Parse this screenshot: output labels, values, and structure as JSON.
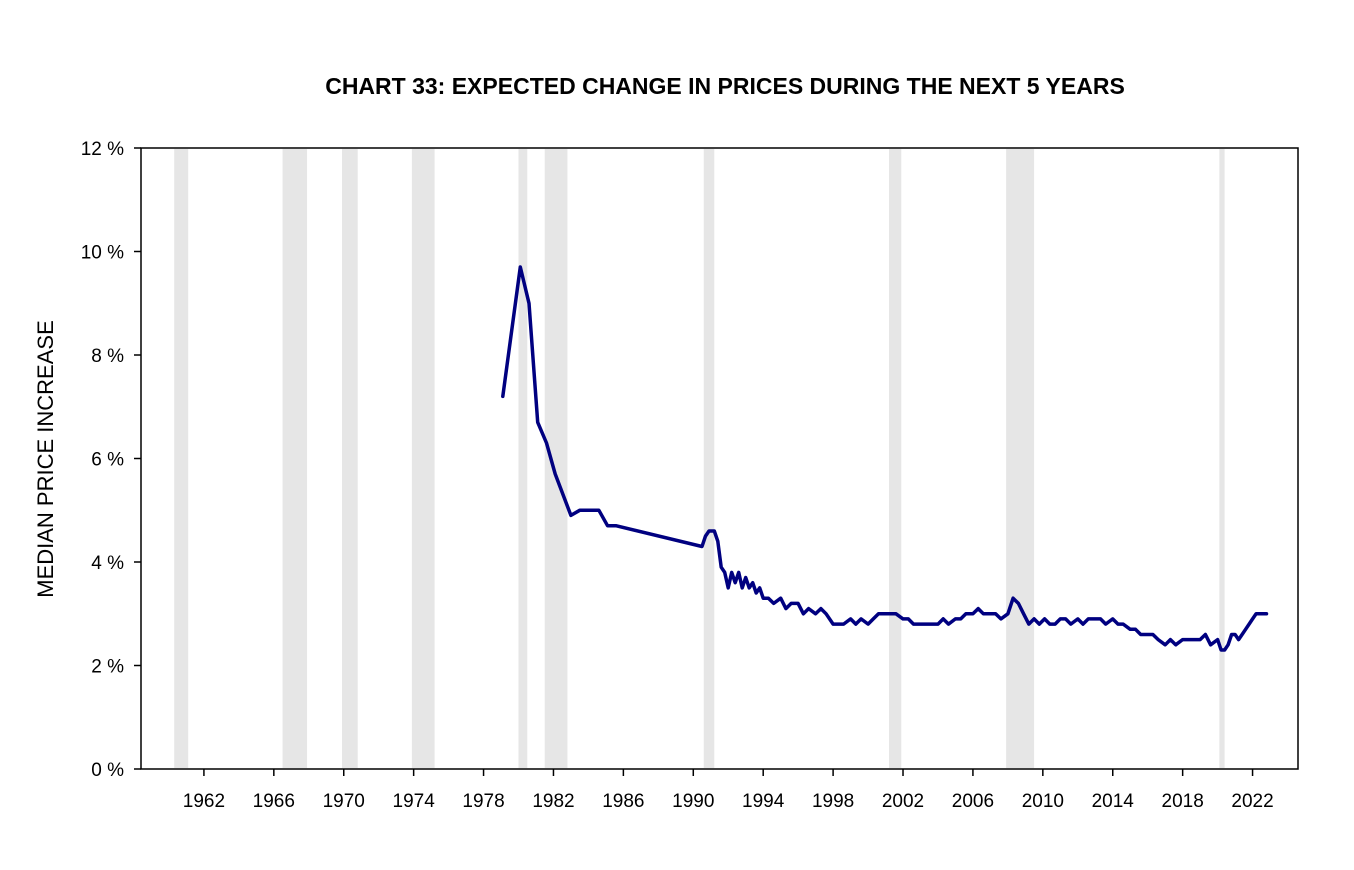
{
  "chart_data": {
    "type": "line",
    "title": "CHART 33: EXPECTED CHANGE IN PRICES DURING THE NEXT 5 YEARS",
    "xlabel": "",
    "ylabel": "MEDIAN PRICE INCREASE",
    "xlim": [
      1958.4,
      2024.6
    ],
    "ylim": [
      0,
      12
    ],
    "x_ticks": [
      1962,
      1966,
      1970,
      1974,
      1978,
      1982,
      1986,
      1990,
      1994,
      1998,
      2002,
      2006,
      2010,
      2014,
      2018,
      2022
    ],
    "x_tick_labels": [
      "1962",
      "1966",
      "1970",
      "1974",
      "1978",
      "1982",
      "1986",
      "1990",
      "1994",
      "1998",
      "2002",
      "2006",
      "2010",
      "2014",
      "2018",
      "2022"
    ],
    "y_ticks": [
      0,
      2,
      4,
      6,
      8,
      10,
      12
    ],
    "y_tick_labels": [
      "0 %",
      "2 %",
      "4 %",
      "6 %",
      "8 %",
      "10 %",
      "12 %"
    ],
    "grid": false,
    "legend": "none",
    "recessions": [
      [
        1960.3,
        1961.1
      ],
      [
        1966.5,
        1967.9
      ],
      [
        1969.9,
        1970.8
      ],
      [
        1973.9,
        1975.2
      ],
      [
        1980.0,
        1980.5
      ],
      [
        1981.5,
        1982.8
      ],
      [
        1990.6,
        1991.2
      ],
      [
        2001.2,
        2001.9
      ],
      [
        2007.9,
        2009.5
      ],
      [
        2020.1,
        2020.4
      ]
    ],
    "series": [
      {
        "color": "#000080",
        "x": [
          1979.1,
          1980.1,
          1980.6,
          1981.1,
          1981.6,
          1982.1,
          1983.0,
          1983.5,
          1984.0,
          1984.6,
          1985.1,
          1985.6,
          1990.5,
          1990.7,
          1990.9,
          1991.2,
          1991.4,
          1991.6,
          1991.8,
          1992.0,
          1992.2,
          1992.4,
          1992.6,
          1992.8,
          1993.0,
          1993.2,
          1993.4,
          1993.6,
          1993.8,
          1994.0,
          1994.3,
          1994.6,
          1995.0,
          1995.3,
          1995.6,
          1996.0,
          1996.3,
          1996.6,
          1997.0,
          1997.3,
          1997.6,
          1998.0,
          1998.3,
          1998.6,
          1999.0,
          1999.3,
          1999.6,
          2000.0,
          2000.3,
          2000.6,
          2001.0,
          2001.3,
          2001.6,
          2002.0,
          2002.3,
          2002.6,
          2003.0,
          2003.3,
          2003.6,
          2004.0,
          2004.3,
          2004.6,
          2005.0,
          2005.3,
          2005.6,
          2006.0,
          2006.3,
          2006.6,
          2007.0,
          2007.3,
          2007.6,
          2008.0,
          2008.3,
          2008.6,
          2008.9,
          2009.2,
          2009.5,
          2009.8,
          2010.1,
          2010.4,
          2010.7,
          2011.0,
          2011.3,
          2011.6,
          2012.0,
          2012.3,
          2012.6,
          2013.0,
          2013.3,
          2013.6,
          2014.0,
          2014.3,
          2014.6,
          2015.0,
          2015.3,
          2015.6,
          2016.0,
          2016.3,
          2016.6,
          2017.0,
          2017.3,
          2017.6,
          2018.0,
          2018.3,
          2018.6,
          2019.0,
          2019.3,
          2019.6,
          2020.0,
          2020.2,
          2020.4,
          2020.6,
          2020.8,
          2021.0,
          2021.2,
          2021.4,
          2021.6,
          2021.8,
          2022.0,
          2022.2,
          2022.4,
          2022.6,
          2022.8
        ],
        "y": [
          7.2,
          9.7,
          9.0,
          6.7,
          6.3,
          5.7,
          4.9,
          5.0,
          5.0,
          5.0,
          4.7,
          4.7,
          4.3,
          4.5,
          4.6,
          4.6,
          4.4,
          3.9,
          3.8,
          3.5,
          3.8,
          3.6,
          3.8,
          3.5,
          3.7,
          3.5,
          3.6,
          3.4,
          3.5,
          3.3,
          3.3,
          3.2,
          3.3,
          3.1,
          3.2,
          3.2,
          3.0,
          3.1,
          3.0,
          3.1,
          3.0,
          2.8,
          2.8,
          2.8,
          2.9,
          2.8,
          2.9,
          2.8,
          2.9,
          3.0,
          3.0,
          3.0,
          3.0,
          2.9,
          2.9,
          2.8,
          2.8,
          2.8,
          2.8,
          2.8,
          2.9,
          2.8,
          2.9,
          2.9,
          3.0,
          3.0,
          3.1,
          3.0,
          3.0,
          3.0,
          2.9,
          3.0,
          3.3,
          3.2,
          3.0,
          2.8,
          2.9,
          2.8,
          2.9,
          2.8,
          2.8,
          2.9,
          2.9,
          2.8,
          2.9,
          2.8,
          2.9,
          2.9,
          2.9,
          2.8,
          2.9,
          2.8,
          2.8,
          2.7,
          2.7,
          2.6,
          2.6,
          2.6,
          2.5,
          2.4,
          2.5,
          2.4,
          2.5,
          2.5,
          2.5,
          2.5,
          2.6,
          2.4,
          2.5,
          2.3,
          2.3,
          2.4,
          2.6,
          2.6,
          2.5,
          2.6,
          2.7,
          2.8,
          2.9,
          3.0,
          3.0,
          3.0,
          3.0
        ]
      }
    ]
  }
}
